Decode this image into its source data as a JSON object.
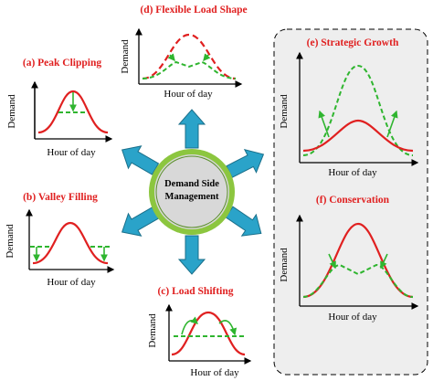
{
  "center": {
    "lines": [
      "Demand Side",
      "Management"
    ]
  },
  "panels": [
    {
      "title": "(a) Peak Clipping",
      "y_label": "Demand",
      "x_label": "Hour of day"
    },
    {
      "title": "(b) Valley Filling",
      "y_label": "Demand",
      "x_label": "Hour of day"
    },
    {
      "title": "(c) Load Shifting",
      "y_label": "Demand",
      "x_label": "Hour of day"
    },
    {
      "title": "(d) Flexible Load Shape",
      "y_label": "Demand",
      "x_label": "Hour of day"
    },
    {
      "title": "(e) Strategic Growth",
      "y_label": "Demand",
      "x_label": "Hour of day"
    },
    {
      "title": "(f) Conservation",
      "y_label": "Demand",
      "x_label": "Hour of day"
    }
  ]
}
